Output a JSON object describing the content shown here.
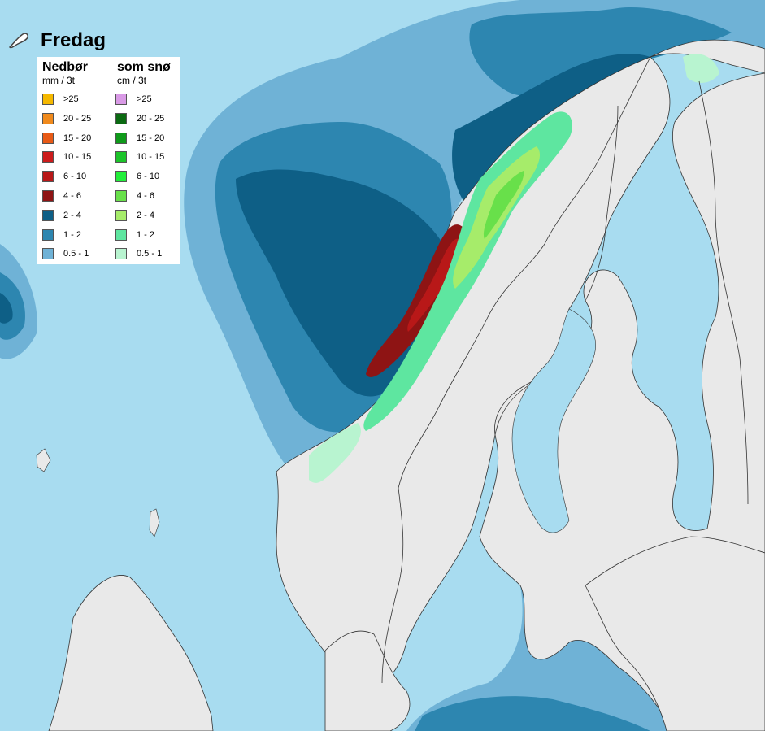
{
  "title": "Fredag",
  "legend": {
    "rain": {
      "title": "Nedbør",
      "unit": "mm / 3t",
      "items": [
        {
          "label": ">25",
          "color": "#f5b800"
        },
        {
          "label": "20 - 25",
          "color": "#f08a1c"
        },
        {
          "label": "15 - 20",
          "color": "#e85a16"
        },
        {
          "label": "10 - 15",
          "color": "#cc1c1c"
        },
        {
          "label": "6 - 10",
          "color": "#b81818"
        },
        {
          "label": "4 - 6",
          "color": "#8e1414"
        },
        {
          "label": "2 - 4",
          "color": "#0e5f86"
        },
        {
          "label": "1 - 2",
          "color": "#2d86b0"
        },
        {
          "label": "0.5 - 1",
          "color": "#6fb2d6"
        }
      ]
    },
    "snow": {
      "title": "som snø",
      "unit": "cm / 3t",
      "items": [
        {
          "label": ">25",
          "color": "#d99ae6"
        },
        {
          "label": "20 - 25",
          "color": "#0b6a12"
        },
        {
          "label": "15 - 20",
          "color": "#0f9a1a"
        },
        {
          "label": "10 - 15",
          "color": "#1cc42a"
        },
        {
          "label": "6 - 10",
          "color": "#22ee3a"
        },
        {
          "label": "4 - 6",
          "color": "#68e04a"
        },
        {
          "label": "2 - 4",
          "color": "#a6ec6a"
        },
        {
          "label": "1 - 2",
          "color": "#5ee6a0"
        },
        {
          "label": "0.5 - 1",
          "color": "#b8f4d0"
        }
      ]
    }
  },
  "colors": {
    "sea": "#a8dcf0",
    "land": "#e9e9e9",
    "border": "#333333"
  }
}
